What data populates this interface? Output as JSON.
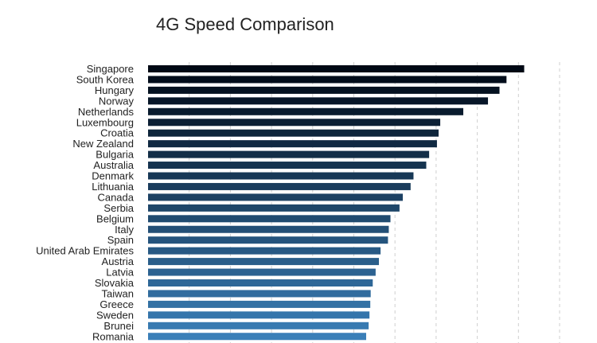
{
  "chart_data": {
    "type": "bar",
    "orientation": "horizontal",
    "title": "4G Speed Comparison",
    "xlabel": "",
    "ylabel": "",
    "xlim": [
      0,
      100
    ],
    "grid": true,
    "legend": "none",
    "categories": [
      "Singapore",
      "South Korea",
      "Hungary",
      "Norway",
      "Netherlands",
      "Luxembourg",
      "Croatia",
      "New Zealand",
      "Bulgaria",
      "Australia",
      "Denmark",
      "Lithuania",
      "Canada",
      "Serbia",
      "Belgium",
      "Italy",
      "Spain",
      "United Arab Emirates",
      "Austria",
      "Latvia",
      "Slovakia",
      "Taiwan",
      "Greece",
      "Sweden",
      "Brunei",
      "Romania"
    ],
    "values": [
      91.4,
      87.1,
      85.4,
      82.6,
      76.6,
      71.0,
      70.6,
      70.2,
      68.3,
      67.6,
      64.5,
      63.8,
      61.9,
      61.1,
      58.9,
      58.5,
      58.3,
      56.5,
      56.1,
      55.3,
      54.6,
      54.1,
      54.0,
      53.8,
      53.6,
      53.0
    ],
    "color_dark": "#000814",
    "color_light": "#3a7fb8"
  }
}
